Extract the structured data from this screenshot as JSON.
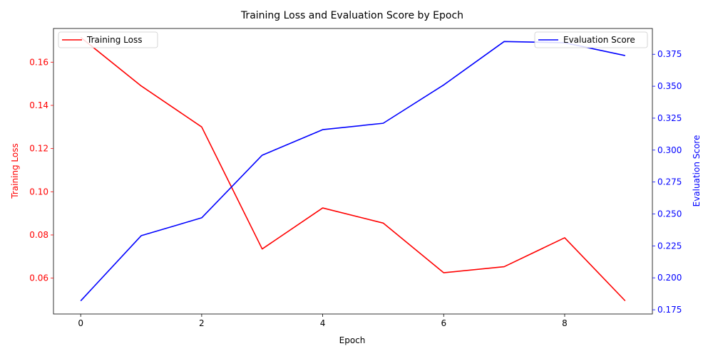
{
  "chart_data": {
    "type": "line",
    "title": "Training Loss and Evaluation Score by Epoch",
    "xlabel": "Epoch",
    "x": [
      0,
      1,
      2,
      3,
      4,
      5,
      6,
      7,
      8,
      9
    ],
    "x_ticks": [
      "0",
      "2",
      "4",
      "6",
      "8"
    ],
    "xlim": [
      -0.45,
      9.45
    ],
    "left_axis": {
      "label": "Training Loss",
      "color": "#ff0000",
      "ylim": [
        0.0434,
        0.1756
      ],
      "ticks": [
        "0.06",
        "0.08",
        "0.10",
        "0.12",
        "0.14",
        "0.16"
      ]
    },
    "right_axis": {
      "label": "Evaluation Score",
      "color": "#0000ff",
      "ylim": [
        0.1717,
        0.3952
      ],
      "ticks": [
        "0.175",
        "0.200",
        "0.225",
        "0.250",
        "0.275",
        "0.300",
        "0.325",
        "0.350",
        "0.375"
      ]
    },
    "series": [
      {
        "name": "Training Loss",
        "axis": "left",
        "color": "#ff0000",
        "values": [
          0.1715,
          0.149,
          0.13,
          0.0735,
          0.0925,
          0.0855,
          0.0625,
          0.0653,
          0.0787,
          0.0495
        ]
      },
      {
        "name": "Evaluation Score",
        "axis": "right",
        "color": "#0000ff",
        "values": [
          0.182,
          0.233,
          0.247,
          0.296,
          0.316,
          0.321,
          0.351,
          0.385,
          0.384,
          0.374
        ]
      }
    ],
    "legends": [
      {
        "label": "Training Loss",
        "color": "#ff0000",
        "placement": "top-left"
      },
      {
        "label": "Evaluation Score",
        "color": "#0000ff",
        "placement": "top-right"
      }
    ],
    "grid": false
  }
}
